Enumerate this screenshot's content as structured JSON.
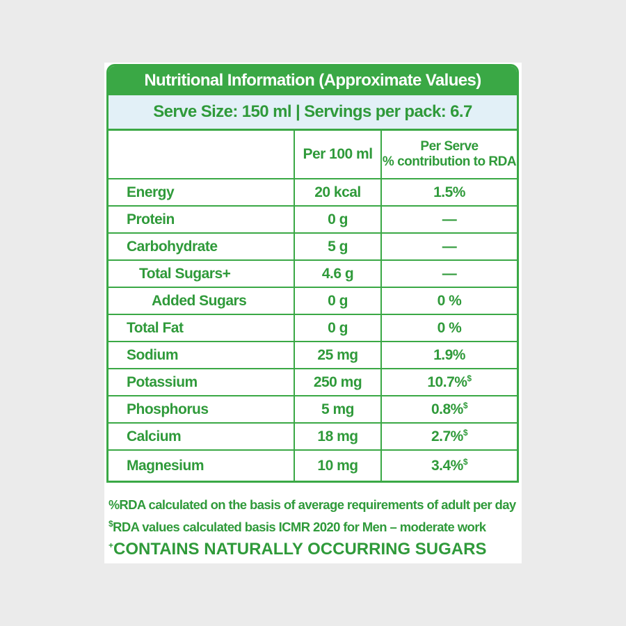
{
  "header": {
    "title": "Nutritional Information (Approximate Values)",
    "serve": "Serve Size: 150 ml | Servings per pack: 6.7"
  },
  "table": {
    "column_headers": {
      "per_100": "Per 100 ml",
      "per_serve": "Per Serve",
      "rda": "% contribution to RDA"
    },
    "rows": [
      {
        "name": "Energy",
        "per_100": "20 kcal",
        "rda": "1.5%"
      },
      {
        "name": "Protein",
        "per_100": "0 g",
        "rda": "—"
      },
      {
        "name": "Carbohydrate",
        "per_100": "5 g",
        "rda": "—",
        "sub": [
          {
            "name": "Total Sugars+",
            "per_100": "4.6 g",
            "rda": "—",
            "sub": [
              {
                "name": "Added Sugars",
                "per_100": "0 g",
                "rda": "0 %"
              }
            ]
          }
        ]
      },
      {
        "name": "Total Fat",
        "per_100": "0 g",
        "rda": "0 %"
      },
      {
        "name": "Sodium",
        "per_100": "25 mg",
        "rda": "1.9%"
      },
      {
        "name": "Potassium",
        "per_100": "250 mg",
        "rda": "10.7%",
        "note": "$"
      },
      {
        "name": "Phosphorus",
        "per_100": "5 mg",
        "rda": "0.8%",
        "note": "$"
      },
      {
        "name": "Calcium",
        "per_100": "18 mg",
        "rda": "2.7%",
        "note": "$"
      },
      {
        "name": "Magnesium",
        "per_100": "10 mg",
        "rda": "3.4%",
        "note": "$"
      }
    ]
  },
  "footnotes": [
    {
      "mark": "%",
      "text": "RDA calculated on the basis of average requirements of adult per day"
    },
    {
      "mark": "$",
      "text": "RDA values calculated basis ICMR 2020 for Men – moderate work"
    },
    {
      "mark": "+",
      "text": "CONTAINS NATURALLY OCCURRING SUGARS"
    }
  ]
}
